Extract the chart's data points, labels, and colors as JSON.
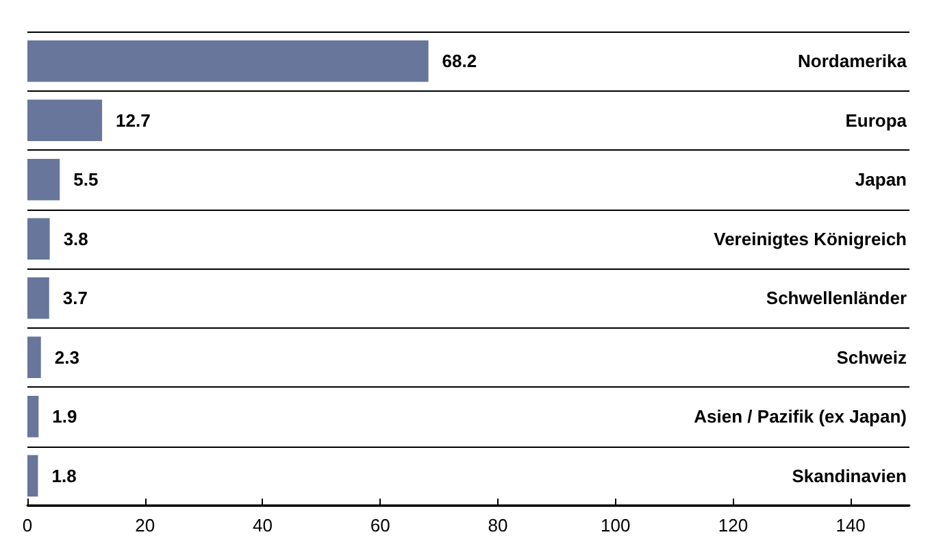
{
  "chart_data": {
    "type": "bar",
    "orientation": "horizontal",
    "categories": [
      "Nordamerika",
      "Europa",
      "Japan",
      "Vereinigtes Königreich",
      "Schwellenländer",
      "Schweiz",
      "Asien / Pazifik (ex Japan)",
      "Skandinavien"
    ],
    "values": [
      68.2,
      12.7,
      5.5,
      3.8,
      3.7,
      2.3,
      1.9,
      1.8
    ],
    "color": "#67769a",
    "xlim": [
      0,
      150
    ],
    "xticks": [
      0,
      20,
      40,
      60,
      80,
      100,
      120,
      140
    ],
    "grid": "y",
    "data_labels": true
  }
}
